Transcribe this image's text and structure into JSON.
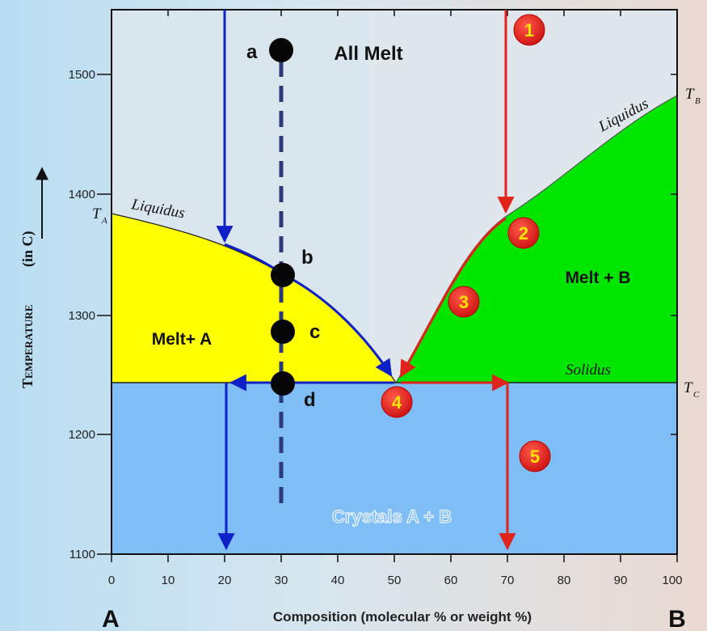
{
  "title_axis": {
    "y_label": "Temperature",
    "y_unit": "(in C)",
    "x_label": "Composition  (molecular % or weight %)",
    "x_left_end": "A",
    "x_right_end": "B"
  },
  "x_ticks": [
    "0",
    "10",
    "20",
    "30",
    "40",
    "50",
    "60",
    "70",
    "80",
    "90",
    "100"
  ],
  "y_ticks": [
    "1500",
    "1400",
    "1300",
    "1200",
    "1100"
  ],
  "regions": {
    "all_melt": "All Melt",
    "melt_a": "Melt+ A",
    "melt_b": "Melt + B",
    "crystals": "Crystals A + B"
  },
  "curve_labels": {
    "liquidus_left": "Liquidus",
    "liquidus_right": "Liquidus",
    "solidus": "Solidus"
  },
  "temp_labels": {
    "ta": "T",
    "ta_sub": "A",
    "tb": "T",
    "tb_sub": "B",
    "tc": "T",
    "tc_sub": "C"
  },
  "points": [
    "a",
    "b",
    "c",
    "d"
  ],
  "steps": [
    "1",
    "2",
    "3",
    "4",
    "5"
  ],
  "colors": {
    "melt_a": "#ffff00",
    "melt_b": "#00e600",
    "crystals": "#7fbdf7",
    "blue_path": "#1020c8",
    "red_path": "#e0241c",
    "step_badge": "#e41e1e",
    "step_text": "#ffe400"
  },
  "chart_data": {
    "type": "phase-diagram",
    "xlim": [
      0,
      100
    ],
    "ylim": [
      1100,
      1550
    ],
    "eutectic": {
      "x": 50,
      "y": 1240
    },
    "ta": 1382,
    "tb": 1480,
    "tc": 1240,
    "point_a": {
      "x": 30,
      "y": 1520
    },
    "point_b": {
      "x": 30,
      "y": 1332
    },
    "point_c": {
      "x": 30,
      "y": 1285
    },
    "point_d": {
      "x": 30,
      "y": 1240
    }
  }
}
